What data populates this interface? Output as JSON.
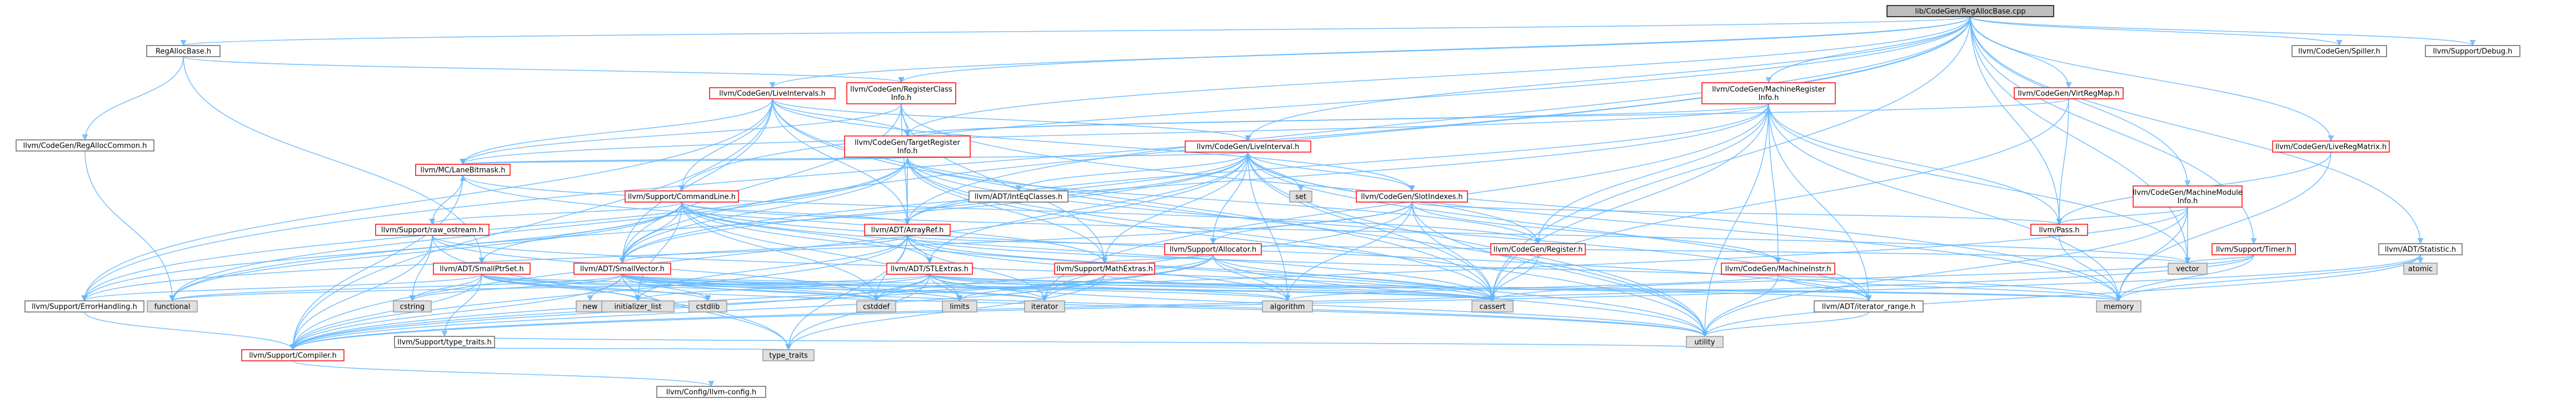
{
  "graph": {
    "root": "lib/CodeGen/RegAllocBase.cpp",
    "nodes": [
      {
        "id": "root",
        "label": "lib/CodeGen/RegAllocBase.cpp",
        "kind": "root"
      },
      {
        "id": "regallocbase",
        "label": "RegAllocBase.h",
        "kind": "gray"
      },
      {
        "id": "regclassinfo",
        "label": "llvm/CodeGen/RegisterClass\nInfo.h",
        "kind": "red"
      },
      {
        "id": "liveintervals",
        "label": "llvm/CodeGen/LiveIntervals.h",
        "kind": "red"
      },
      {
        "id": "mri",
        "label": "llvm/CodeGen/MachineRegister\nInfo.h",
        "kind": "red"
      },
      {
        "id": "vrm",
        "label": "llvm/CodeGen/VirtRegMap.h",
        "kind": "red"
      },
      {
        "id": "spiller",
        "label": "llvm/CodeGen/Spiller.h",
        "kind": "gray"
      },
      {
        "id": "debug",
        "label": "llvm/Support/Debug.h",
        "kind": "gray"
      },
      {
        "id": "regalloccommon",
        "label": "llvm/CodeGen/RegAllocCommon.h",
        "kind": "gray"
      },
      {
        "id": "tri",
        "label": "llvm/CodeGen/TargetRegister\nInfo.h",
        "kind": "red"
      },
      {
        "id": "liveinterval",
        "label": "llvm/CodeGen/LiveInterval.h",
        "kind": "red"
      },
      {
        "id": "livematrix",
        "label": "llvm/CodeGen/LiveRegMatrix.h",
        "kind": "red"
      },
      {
        "id": "mcbitmask",
        "label": "llvm/MC/LaneBitmask.h",
        "kind": "red"
      },
      {
        "id": "cmdline",
        "label": "llvm/Support/CommandLine.h",
        "kind": "red"
      },
      {
        "id": "inteqclasses",
        "label": "llvm/ADT/IntEqClasses.h",
        "kind": "gray"
      },
      {
        "id": "set",
        "label": "set",
        "kind": "sys"
      },
      {
        "id": "slotindexes",
        "label": "llvm/CodeGen/SlotIndexes.h",
        "kind": "red"
      },
      {
        "id": "mmi",
        "label": "llvm/CodeGen/MachineModule\nInfo.h",
        "kind": "red"
      },
      {
        "id": "rawostream",
        "label": "llvm/Support/raw_ostream.h",
        "kind": "red"
      },
      {
        "id": "arrayref",
        "label": "llvm/ADT/ArrayRef.h",
        "kind": "red"
      },
      {
        "id": "allocator",
        "label": "llvm/Support/Allocator.h",
        "kind": "red"
      },
      {
        "id": "register",
        "label": "llvm/CodeGen/Register.h",
        "kind": "red"
      },
      {
        "id": "pass",
        "label": "llvm/Pass.h",
        "kind": "red"
      },
      {
        "id": "timer",
        "label": "llvm/Support/Timer.h",
        "kind": "red"
      },
      {
        "id": "statistic",
        "label": "llvm/ADT/Statistic.h",
        "kind": "gray"
      },
      {
        "id": "smallptrset",
        "label": "llvm/ADT/SmallPtrSet.h",
        "kind": "red"
      },
      {
        "id": "smallvector",
        "label": "llvm/ADT/SmallVector.h",
        "kind": "red"
      },
      {
        "id": "stlextras",
        "label": "llvm/ADT/STLExtras.h",
        "kind": "red"
      },
      {
        "id": "mathextras",
        "label": "llvm/Support/MathExtras.h",
        "kind": "red"
      },
      {
        "id": "machineinstr",
        "label": "llvm/CodeGen/MachineInstr.h",
        "kind": "red"
      },
      {
        "id": "vector",
        "label": "vector",
        "kind": "sys"
      },
      {
        "id": "atomic",
        "label": "atomic",
        "kind": "sys"
      },
      {
        "id": "errorhandling",
        "label": "llvm/Support/ErrorHandling.h",
        "kind": "gray"
      },
      {
        "id": "functional",
        "label": "functional",
        "kind": "sys"
      },
      {
        "id": "cstring",
        "label": "cstring",
        "kind": "sys"
      },
      {
        "id": "typetraits_h",
        "label": "llvm/Support/type_traits.h",
        "kind": "gray"
      },
      {
        "id": "new",
        "label": "new",
        "kind": "sys"
      },
      {
        "id": "initlist",
        "label": "initializer_list",
        "kind": "sys"
      },
      {
        "id": "cstdlib",
        "label": "cstdlib",
        "kind": "sys"
      },
      {
        "id": "cstddef",
        "label": "cstddef",
        "kind": "sys"
      },
      {
        "id": "limits",
        "label": "limits",
        "kind": "sys"
      },
      {
        "id": "iterator",
        "label": "iterator",
        "kind": "sys"
      },
      {
        "id": "algorithm",
        "label": "algorithm",
        "kind": "sys"
      },
      {
        "id": "cassert",
        "label": "cassert",
        "kind": "sys"
      },
      {
        "id": "iterrange",
        "label": "llvm/ADT/iterator_range.h",
        "kind": "gray"
      },
      {
        "id": "memory",
        "label": "memory",
        "kind": "sys"
      },
      {
        "id": "compiler",
        "label": "llvm/Support/Compiler.h",
        "kind": "red"
      },
      {
        "id": "typetraits",
        "label": "type_traits",
        "kind": "sys"
      },
      {
        "id": "utility",
        "label": "utility",
        "kind": "sys"
      },
      {
        "id": "config",
        "label": "llvm/Config/llvm-config.h",
        "kind": "gray"
      }
    ],
    "edges": [
      [
        "root",
        "regallocbase"
      ],
      [
        "root",
        "regclassinfo"
      ],
      [
        "root",
        "liveintervals"
      ],
      [
        "root",
        "mri"
      ],
      [
        "root",
        "vrm"
      ],
      [
        "root",
        "spiller"
      ],
      [
        "root",
        "debug"
      ],
      [
        "root",
        "livematrix"
      ],
      [
        "root",
        "mmi"
      ],
      [
        "root",
        "statistic"
      ],
      [
        "root",
        "cmdline"
      ],
      [
        "root",
        "liveinterval"
      ],
      [
        "root",
        "tri"
      ],
      [
        "root",
        "errorhandling"
      ],
      [
        "root",
        "pass"
      ],
      [
        "root",
        "timer"
      ],
      [
        "root",
        "arrayref"
      ],
      [
        "root",
        "smallvector"
      ],
      [
        "root",
        "cassert"
      ],
      [
        "root",
        "vector"
      ],
      [
        "regallocbase",
        "regalloccommon"
      ],
      [
        "regallocbase",
        "regclassinfo"
      ],
      [
        "regallocbase",
        "smallptrset"
      ],
      [
        "regalloccommon",
        "functional"
      ],
      [
        "regclassinfo",
        "tri"
      ],
      [
        "regclassinfo",
        "mcbitmask"
      ],
      [
        "regclassinfo",
        "arrayref"
      ],
      [
        "regclassinfo",
        "mathextras"
      ],
      [
        "regclassinfo",
        "smallvector"
      ],
      [
        "regclassinfo",
        "memory"
      ],
      [
        "regclassinfo",
        "cstdint_dummy"
      ],
      [
        "liveintervals",
        "liveinterval"
      ],
      [
        "liveintervals",
        "slotindexes"
      ],
      [
        "liveintervals",
        "tri"
      ],
      [
        "liveintervals",
        "mcbitmask"
      ],
      [
        "liveintervals",
        "cmdline"
      ],
      [
        "liveintervals",
        "arrayref"
      ],
      [
        "liveintervals",
        "smallvector"
      ],
      [
        "liveintervals",
        "errorhandling"
      ],
      [
        "liveintervals",
        "compiler"
      ],
      [
        "liveintervals",
        "cassert"
      ],
      [
        "liveintervals",
        "cstdint_dummy"
      ],
      [
        "liveintervals",
        "utility"
      ],
      [
        "mri",
        "tri"
      ],
      [
        "mri",
        "register"
      ],
      [
        "mri",
        "mcbitmask"
      ],
      [
        "mri",
        "pass"
      ],
      [
        "mri",
        "iterrange"
      ],
      [
        "mri",
        "vector"
      ],
      [
        "mri",
        "memory"
      ],
      [
        "mri",
        "cassert"
      ],
      [
        "mri",
        "iterator"
      ],
      [
        "mri",
        "utility"
      ],
      [
        "mri",
        "machineinstr"
      ],
      [
        "mri",
        "smallvector"
      ],
      [
        "mri",
        "arrayref"
      ],
      [
        "vrm",
        "tri"
      ],
      [
        "vrm",
        "pass"
      ],
      [
        "vrm",
        "cassert"
      ],
      [
        "tri",
        "mcbitmask"
      ],
      [
        "tri",
        "arrayref"
      ],
      [
        "tri",
        "smallvector"
      ],
      [
        "tri",
        "register"
      ],
      [
        "tri",
        "mathextras"
      ],
      [
        "tri",
        "errorhandling"
      ],
      [
        "tri",
        "functional"
      ],
      [
        "tri",
        "cassert"
      ],
      [
        "tri",
        "iterrange"
      ],
      [
        "tri",
        "cstdint_dummy"
      ],
      [
        "tri",
        "utility"
      ],
      [
        "liveinterval",
        "inteqclasses"
      ],
      [
        "liveinterval",
        "set"
      ],
      [
        "liveinterval",
        "slotindexes"
      ],
      [
        "liveinterval",
        "register"
      ],
      [
        "liveinterval",
        "mcbitmask"
      ],
      [
        "liveinterval",
        "arrayref"
      ],
      [
        "liveinterval",
        "allocator"
      ],
      [
        "liveinterval",
        "mathextras"
      ],
      [
        "liveinterval",
        "smallvector"
      ],
      [
        "liveinterval",
        "stlextras"
      ],
      [
        "liveinterval",
        "iterrange"
      ],
      [
        "liveinterval",
        "algorithm"
      ],
      [
        "liveinterval",
        "cassert"
      ],
      [
        "liveinterval",
        "functional"
      ],
      [
        "liveinterval",
        "memory"
      ],
      [
        "liveinterval",
        "utility"
      ],
      [
        "liveinterval",
        "compiler"
      ],
      [
        "livematrix",
        "pass"
      ],
      [
        "livematrix",
        "memory"
      ],
      [
        "mcbitmask",
        "compiler"
      ],
      [
        "mcbitmask",
        "rawostream"
      ],
      [
        "mcbitmask",
        "mathextras"
      ],
      [
        "cmdline",
        "arrayref"
      ],
      [
        "cmdline",
        "smallptrset"
      ],
      [
        "cmdline",
        "smallvector"
      ],
      [
        "cmdline",
        "stlextras"
      ],
      [
        "cmdline",
        "errorhandling"
      ],
      [
        "cmdline",
        "rawostream"
      ],
      [
        "cmdline",
        "iterrange"
      ],
      [
        "cmdline",
        "cassert"
      ],
      [
        "cmdline",
        "functional"
      ],
      [
        "cmdline",
        "initlist"
      ],
      [
        "cmdline",
        "limits"
      ],
      [
        "cmdline",
        "vector"
      ],
      [
        "cmdline",
        "utility"
      ],
      [
        "cmdline",
        "cstddef"
      ],
      [
        "slotindexes",
        "pass"
      ],
      [
        "slotindexes",
        "allocator"
      ],
      [
        "slotindexes",
        "errorhandling"
      ],
      [
        "slotindexes",
        "machineinstr"
      ],
      [
        "slotindexes",
        "algorithm"
      ],
      [
        "slotindexes",
        "cassert"
      ],
      [
        "slotindexes",
        "iterator"
      ],
      [
        "slotindexes",
        "utility"
      ],
      [
        "mmi",
        "pass"
      ],
      [
        "mmi",
        "compiler"
      ],
      [
        "mmi",
        "memory"
      ],
      [
        "mmi",
        "utility"
      ],
      [
        "mmi",
        "vector"
      ],
      [
        "rawostream",
        "compiler"
      ],
      [
        "rawostream",
        "cassert"
      ],
      [
        "rawostream",
        "cstddef"
      ],
      [
        "rawostream",
        "cstring"
      ],
      [
        "rawostream",
        "typetraits"
      ],
      [
        "arrayref",
        "smallvector"
      ],
      [
        "arrayref",
        "stlextras"
      ],
      [
        "arrayref",
        "compiler"
      ],
      [
        "arrayref",
        "algorithm"
      ],
      [
        "arrayref",
        "array_dummy"
      ],
      [
        "arrayref",
        "cassert"
      ],
      [
        "arrayref",
        "cstddef"
      ],
      [
        "arrayref",
        "initlist"
      ],
      [
        "arrayref",
        "iterator"
      ],
      [
        "arrayref",
        "memory"
      ],
      [
        "arrayref",
        "typetraits"
      ],
      [
        "arrayref",
        "vector"
      ],
      [
        "allocator",
        "compiler"
      ],
      [
        "allocator",
        "mathextras"
      ],
      [
        "allocator",
        "algorithm"
      ],
      [
        "allocator",
        "cassert"
      ],
      [
        "allocator",
        "cstddef"
      ],
      [
        "allocator",
        "iterator"
      ],
      [
        "allocator",
        "utility"
      ],
      [
        "register",
        "mcbitmask"
      ],
      [
        "register",
        "cassert"
      ],
      [
        "pass",
        "memory"
      ],
      [
        "timer",
        "compiler"
      ],
      [
        "timer",
        "memory"
      ],
      [
        "timer",
        "vector"
      ],
      [
        "timer",
        "cassert"
      ],
      [
        "statistic",
        "atomic"
      ],
      [
        "statistic",
        "memory"
      ],
      [
        "statistic",
        "compiler"
      ],
      [
        "statistic",
        "utility"
      ],
      [
        "smallptrset",
        "compiler"
      ],
      [
        "smallptrset",
        "typetraits_h"
      ],
      [
        "smallptrset",
        "cstring"
      ],
      [
        "smallptrset",
        "cassert"
      ],
      [
        "smallptrset",
        "cstddef"
      ],
      [
        "smallptrset",
        "initlist"
      ],
      [
        "smallptrset",
        "cstdlib"
      ],
      [
        "smallptrset",
        "iterator"
      ],
      [
        "smallptrset",
        "utility"
      ],
      [
        "smallptrset",
        "errorhandling"
      ],
      [
        "smallvector",
        "compiler"
      ],
      [
        "smallvector",
        "algorithm"
      ],
      [
        "smallvector",
        "cassert"
      ],
      [
        "smallvector",
        "cstddef"
      ],
      [
        "smallvector",
        "cstdlib"
      ],
      [
        "smallvector",
        "cstring"
      ],
      [
        "smallvector",
        "functional"
      ],
      [
        "smallvector",
        "initlist"
      ],
      [
        "smallvector",
        "iterator"
      ],
      [
        "smallvector",
        "limits"
      ],
      [
        "smallvector",
        "memory"
      ],
      [
        "smallvector",
        "new"
      ],
      [
        "smallvector",
        "typetraits"
      ],
      [
        "smallvector",
        "utility"
      ],
      [
        "stlextras",
        "compiler"
      ],
      [
        "stlextras",
        "iterrange"
      ],
      [
        "stlextras",
        "algorithm"
      ],
      [
        "stlextras",
        "cassert"
      ],
      [
        "stlextras",
        "cstddef"
      ],
      [
        "stlextras",
        "functional"
      ],
      [
        "stlextras",
        "initlist"
      ],
      [
        "stlextras",
        "iterator"
      ],
      [
        "stlextras",
        "limits"
      ],
      [
        "stlextras",
        "memory"
      ],
      [
        "stlextras",
        "typetraits"
      ],
      [
        "stlextras",
        "utility"
      ],
      [
        "mathextras",
        "compiler"
      ],
      [
        "mathextras",
        "cassert"
      ],
      [
        "mathextras",
        "limits"
      ],
      [
        "mathextras",
        "typetraits"
      ],
      [
        "machineinstr",
        "iterrange"
      ],
      [
        "machineinstr",
        "memory"
      ],
      [
        "machineinstr",
        "utility"
      ],
      [
        "machineinstr",
        "algorithm"
      ],
      [
        "typetraits_h",
        "typetraits"
      ],
      [
        "typetraits_h",
        "utility"
      ],
      [
        "iterrange",
        "utility"
      ],
      [
        "errorhandling",
        "compiler"
      ],
      [
        "compiler",
        "config"
      ]
    ]
  }
}
